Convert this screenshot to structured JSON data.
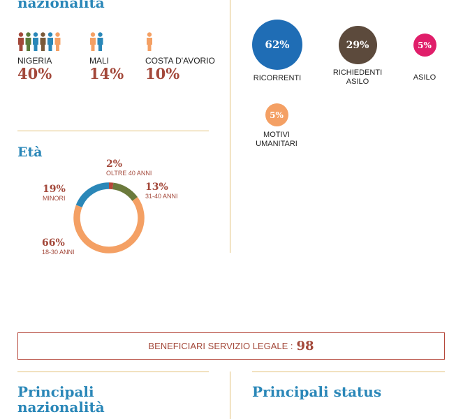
{
  "top_left": {
    "title_tail": "nazionalità",
    "countries": [
      {
        "name": "NIGERIA",
        "percent": "40%",
        "value": 40
      },
      {
        "name": "MALI",
        "percent": "14%",
        "value": 14
      },
      {
        "name": "COSTA D'AVORIO",
        "percent": "10%",
        "value": 10
      }
    ],
    "icon_colors": [
      "#a3483a",
      "#5a7a3a",
      "#2a87b8",
      "#7a5a3a",
      "#f4a064"
    ]
  },
  "status": {
    "items": [
      {
        "label": "RICORRENTI",
        "percent": "62%",
        "value": 62,
        "color": "#1f6db5"
      },
      {
        "label": "RICHIEDENTI ASILO",
        "percent": "29%",
        "value": 29,
        "color": "#5c4a3c"
      },
      {
        "label": "ASILO",
        "percent": "5%",
        "value": 5,
        "color": "#e01e6a"
      },
      {
        "label": "MOTIVI UMANITARI",
        "percent": "5%",
        "value": 5,
        "color": "#f4a064"
      }
    ]
  },
  "eta": {
    "title": "Età"
  },
  "chart_data": {
    "type": "pie",
    "title": "Età",
    "categories": [
      "OLTRE 40 ANNI",
      "31-40 ANNI",
      "18-30 ANNI",
      "MINORI"
    ],
    "values": [
      2,
      13,
      66,
      19
    ],
    "labels": [
      "2%",
      "13%",
      "66%",
      "19%"
    ],
    "colors": [
      "#b5473a",
      "#6b7a3c",
      "#f4a064",
      "#2a87b8"
    ],
    "donut": true
  },
  "banner": {
    "label": "BENEFICIARI SERVIZIO LEGALE :",
    "value": "98"
  },
  "bottom": {
    "left_title_1": "Principali",
    "left_title_2": "nazionalità",
    "right_title": "Principali status"
  }
}
